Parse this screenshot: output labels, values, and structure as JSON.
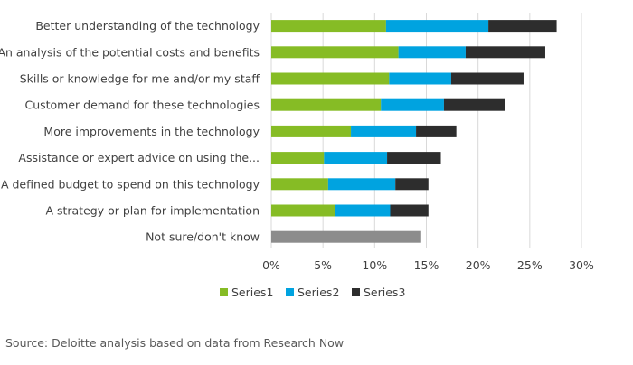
{
  "chart_data": {
    "type": "bar",
    "orientation": "horizontal",
    "stacked": true,
    "title": "",
    "xlabel": "",
    "ylabel": "",
    "xlim": [
      0,
      30
    ],
    "x_ticks": [
      0,
      5,
      10,
      15,
      20,
      25,
      30
    ],
    "tick_suffix": "%",
    "grid": "vertical",
    "legend_position": "bottom",
    "categories": [
      "Better understanding of the technology",
      "An analysis of the potential costs and benefits",
      "Skills or knowledge for me and/or my staff",
      "Customer demand for these technologies",
      "More improvements in the technology",
      "Assistance or expert advice on using the...",
      "A defined budget to spend on this technology",
      "A strategy or plan for implementation",
      "Not sure/don't know"
    ],
    "series": [
      {
        "name": "Series1",
        "color": "#86bc25",
        "values": [
          11.1,
          12.3,
          11.4,
          10.6,
          7.7,
          5.1,
          5.5,
          6.2,
          0
        ]
      },
      {
        "name": "Series2",
        "color": "#00a3e0",
        "values": [
          9.9,
          6.5,
          6.0,
          6.1,
          6.3,
          6.1,
          6.5,
          5.3,
          0
        ]
      },
      {
        "name": "Series3",
        "color": "#2d2d2d",
        "values": [
          6.6,
          7.7,
          7.0,
          5.9,
          3.9,
          5.2,
          3.2,
          3.7,
          0
        ]
      }
    ],
    "single_bars": [
      {
        "category": "Not sure/don't know",
        "value": 14.5,
        "color": "#8c8c8c"
      }
    ]
  },
  "source": "Source: Deloitte analysis based on data from Research Now"
}
